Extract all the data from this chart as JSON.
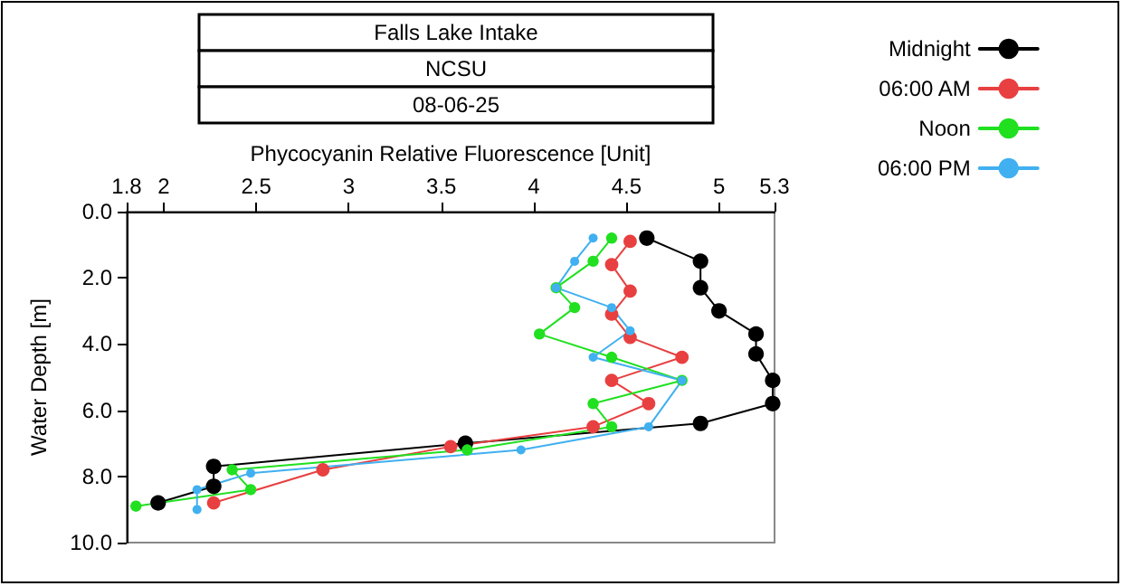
{
  "chart_data": {
    "type": "line",
    "title": "Falls Lake Intake",
    "subtitle": "NCSU",
    "annotations": [
      "08-06-25"
    ],
    "xlabel": "Phycocyanin Relative Fluorescence [Unit]",
    "ylabel": "Water Depth [m]",
    "xlim": [
      1.8,
      5.3
    ],
    "xticks": [
      1.8,
      2,
      2.5,
      3,
      3.5,
      4,
      4.5,
      5,
      5.3
    ],
    "ylim": [
      10,
      0
    ],
    "yticks": [
      {
        "value": 0,
        "label": "0.0"
      },
      {
        "value": 2,
        "label": "2.0"
      },
      {
        "value": 4,
        "label": "4.0"
      },
      {
        "value": 6,
        "label": "6.0"
      },
      {
        "value": 8,
        "label": "8.0"
      },
      {
        "value": 10,
        "label": "10.0"
      }
    ],
    "grid": false,
    "legend": "top right",
    "marker": "circle",
    "line_style": "solid",
    "series": [
      {
        "name": "Midnight",
        "color": "#000000",
        "x": [
          4.61,
          4.9,
          4.9,
          5.0,
          5.2,
          5.2,
          5.29,
          5.29,
          4.9,
          3.63,
          2.27,
          2.27,
          1.97
        ],
        "values": [
          0.8,
          1.5,
          2.3,
          3.0,
          3.7,
          4.3,
          5.1,
          5.8,
          6.4,
          7.0,
          7.7,
          8.3,
          8.8
        ]
      },
      {
        "name": "06:00 AM",
        "color": "#e84040",
        "x": [
          4.52,
          4.42,
          4.52,
          4.42,
          4.52,
          4.8,
          4.42,
          4.62,
          4.32,
          3.55,
          2.86,
          2.27
        ],
        "values": [
          0.9,
          1.6,
          2.4,
          3.1,
          3.8,
          4.4,
          5.1,
          5.8,
          6.5,
          7.1,
          7.8,
          8.8
        ]
      },
      {
        "name": "Noon",
        "color": "#20e020",
        "x": [
          4.42,
          4.32,
          4.12,
          4.22,
          4.03,
          4.42,
          4.8,
          4.32,
          4.42,
          3.64,
          2.37,
          2.47,
          1.85
        ],
        "values": [
          0.8,
          1.5,
          2.3,
          2.9,
          3.7,
          4.4,
          5.1,
          5.8,
          6.5,
          7.2,
          7.8,
          8.4,
          8.9
        ]
      },
      {
        "name": "06:00 PM",
        "color": "#40b0f0",
        "x": [
          4.32,
          4.22,
          4.12,
          4.42,
          4.52,
          4.32,
          4.8,
          4.62,
          3.93,
          2.47,
          2.18,
          2.18
        ],
        "values": [
          0.8,
          1.5,
          2.3,
          2.9,
          3.6,
          4.4,
          5.1,
          6.5,
          7.2,
          7.9,
          8.4,
          9.0
        ]
      }
    ]
  }
}
